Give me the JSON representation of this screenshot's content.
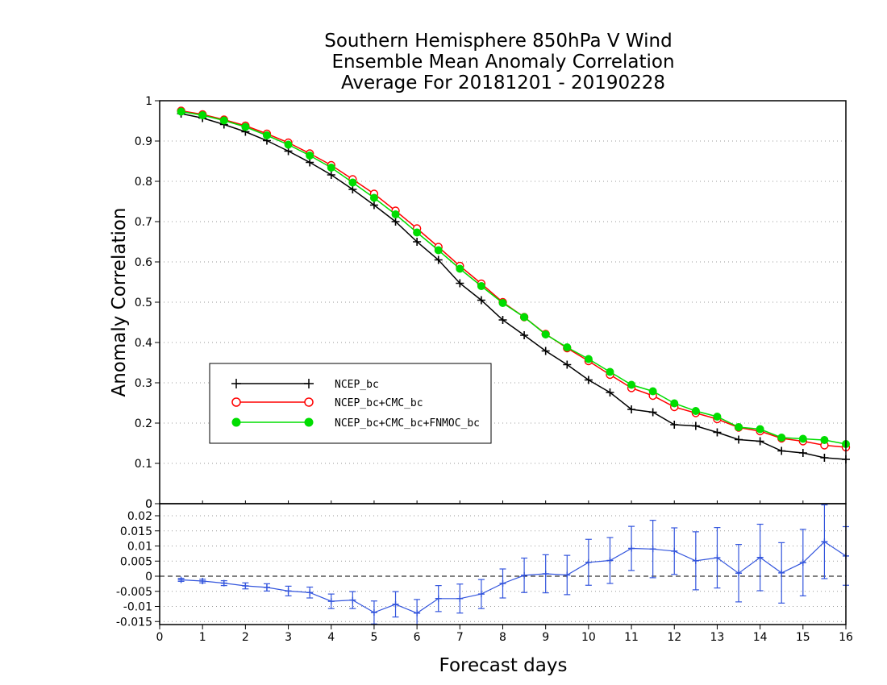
{
  "chart_data": [
    {
      "type": "line",
      "title": [
        "Southern Hemisphere 850hPa V Wind",
        "Ensemble Mean Anomaly Correlation",
        "Average For 20181201 - 20190228"
      ],
      "xlabel": "Forecast days",
      "ylabel": "Anomaly Correlation",
      "xlim": [
        0,
        16
      ],
      "ylim": [
        0,
        1
      ],
      "x_ticks": [
        "0",
        "1",
        "2",
        "3",
        "4",
        "5",
        "6",
        "7",
        "8",
        "9",
        "10",
        "11",
        "12",
        "13",
        "14",
        "15",
        "16"
      ],
      "y_ticks": [
        "0",
        "0.1",
        "0.2",
        "0.3",
        "0.4",
        "0.5",
        "0.6",
        "0.7",
        "0.8",
        "0.9",
        "1"
      ],
      "grid": true,
      "legend_position": "lower-left",
      "x": [
        0.5,
        1,
        1.5,
        2,
        2.5,
        3,
        3.5,
        4,
        4.5,
        5,
        5.5,
        6,
        6.5,
        7,
        7.5,
        8,
        8.5,
        9,
        9.5,
        10,
        10.5,
        11,
        11.5,
        12,
        12.5,
        13,
        13.5,
        14,
        14.5,
        15,
        15.5,
        16
      ],
      "series": [
        {
          "name": "NCEP_bc",
          "color": "#000000",
          "marker": "plus",
          "values": [
            0.968,
            0.957,
            0.941,
            0.923,
            0.901,
            0.875,
            0.847,
            0.816,
            0.78,
            0.741,
            0.7,
            0.65,
            0.605,
            0.547,
            0.505,
            0.456,
            0.418,
            0.379,
            0.345,
            0.307,
            0.276,
            0.234,
            0.227,
            0.196,
            0.193,
            0.177,
            0.159,
            0.155,
            0.131,
            0.126,
            0.114,
            0.11
          ]
        },
        {
          "name": "NCEP_bc+CMC_bc",
          "color": "#ff0000",
          "marker": "open-circle",
          "values": [
            0.975,
            0.966,
            0.953,
            0.938,
            0.918,
            0.896,
            0.869,
            0.84,
            0.805,
            0.769,
            0.727,
            0.683,
            0.637,
            0.59,
            0.546,
            0.5,
            0.463,
            0.421,
            0.386,
            0.354,
            0.32,
            0.287,
            0.268,
            0.24,
            0.225,
            0.21,
            0.189,
            0.18,
            0.162,
            0.155,
            0.145,
            0.14
          ]
        },
        {
          "name": "NCEP_bc+CMC_bc+FNMOC_bc",
          "color": "#00dd00",
          "marker": "filled-circle",
          "values": [
            0.973,
            0.964,
            0.951,
            0.935,
            0.914,
            0.891,
            0.864,
            0.834,
            0.797,
            0.759,
            0.718,
            0.673,
            0.629,
            0.583,
            0.54,
            0.498,
            0.463,
            0.42,
            0.388,
            0.359,
            0.327,
            0.295,
            0.279,
            0.249,
            0.23,
            0.216,
            0.19,
            0.185,
            0.164,
            0.161,
            0.158,
            0.148
          ]
        }
      ]
    },
    {
      "type": "line",
      "xlabel": "Forecast days",
      "xlim": [
        0,
        16
      ],
      "ylim": [
        -0.016,
        0.024
      ],
      "y_ticks": [
        "-0.015",
        "-0.01",
        "-0.005",
        "0",
        "0.005",
        "0.01",
        "0.015",
        "0.02"
      ],
      "grid": true,
      "x": [
        0.5,
        1,
        1.5,
        2,
        2.5,
        3,
        3.5,
        4,
        4.5,
        5,
        5.5,
        6,
        6.5,
        7,
        7.5,
        8,
        8.5,
        9,
        9.5,
        10,
        10.5,
        11,
        11.5,
        12,
        12.5,
        13,
        13.5,
        14,
        14.5,
        15,
        15.5,
        16
      ],
      "series": [
        {
          "color": "#3355dd",
          "marker": "plus",
          "values": [
            -0.0012,
            -0.0016,
            -0.0023,
            -0.0032,
            -0.0037,
            -0.0049,
            -0.0054,
            -0.0083,
            -0.0079,
            -0.012,
            -0.0093,
            -0.0122,
            -0.0074,
            -0.0074,
            -0.0059,
            -0.0024,
            0.0003,
            0.0008,
            0.0004,
            0.0046,
            0.0052,
            0.0092,
            0.009,
            0.0083,
            0.0051,
            0.0061,
            0.001,
            0.0062,
            0.0011,
            0.0045,
            0.0114,
            0.0067
          ],
          "error": [
            0.0005,
            0.0006,
            0.0008,
            0.001,
            0.0012,
            0.0016,
            0.0018,
            0.0024,
            0.0028,
            0.0038,
            0.0042,
            0.0045,
            0.0043,
            0.0048,
            0.0048,
            0.0048,
            0.0057,
            0.0063,
            0.0065,
            0.0076,
            0.0076,
            0.0073,
            0.0095,
            0.0077,
            0.0096,
            0.01,
            0.0095,
            0.011,
            0.01,
            0.011,
            0.0122,
            0.0097
          ]
        }
      ]
    }
  ],
  "legend": {
    "items": [
      "NCEP_bc",
      "NCEP_bc+CMC_bc",
      "NCEP_bc+CMC_bc+FNMOC_bc"
    ]
  }
}
